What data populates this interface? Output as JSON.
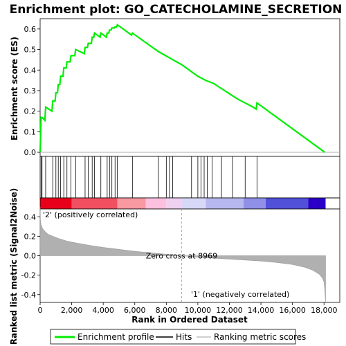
{
  "chart_data": {
    "type": "line",
    "title": "Enrichment plot: GO_CATECHOLAMINE_SECRETION",
    "top_panel": {
      "ylabel": "Enrichment score (ES)",
      "ylim": [
        -0.02,
        0.65
      ],
      "yticks": [
        "0.0",
        "0.1",
        "0.2",
        "0.3",
        "0.4",
        "0.5",
        "0.6"
      ],
      "ytick_values": [
        0.0,
        0.1,
        0.2,
        0.3,
        0.4,
        0.5,
        0.6
      ],
      "series": [
        {
          "name": "Enrichment profile",
          "color": "#00ee00",
          "x": [
            0,
            60,
            120,
            300,
            350,
            750,
            800,
            950,
            1000,
            1100,
            1150,
            1250,
            1300,
            1450,
            1500,
            1650,
            1700,
            1900,
            1950,
            2200,
            2250,
            2800,
            2850,
            3000,
            3050,
            3250,
            3300,
            3400,
            3450,
            3800,
            3850,
            4200,
            4250,
            4350,
            4400,
            4500,
            4550,
            4700,
            4750,
            4850,
            4900,
            5800,
            5850,
            7500,
            9000,
            10000,
            10500,
            11000,
            11500,
            12000,
            12500,
            13000,
            13500,
            13700,
            13750,
            18050
          ],
          "y": [
            0.0,
            0.17,
            0.17,
            0.155,
            0.22,
            0.2,
            0.25,
            0.25,
            0.29,
            0.29,
            0.33,
            0.33,
            0.37,
            0.37,
            0.41,
            0.41,
            0.44,
            0.44,
            0.47,
            0.47,
            0.5,
            0.48,
            0.51,
            0.51,
            0.53,
            0.53,
            0.56,
            0.56,
            0.58,
            0.56,
            0.58,
            0.56,
            0.58,
            0.58,
            0.595,
            0.595,
            0.605,
            0.605,
            0.61,
            0.61,
            0.62,
            0.57,
            0.58,
            0.49,
            0.425,
            0.37,
            0.35,
            0.335,
            0.31,
            0.285,
            0.26,
            0.24,
            0.22,
            0.21,
            0.24,
            0.0
          ]
        }
      ]
    },
    "hits": {
      "name": "Hits",
      "x": [
        60,
        120,
        350,
        800,
        1000,
        1150,
        1300,
        1500,
        1700,
        1950,
        2250,
        2850,
        3050,
        3300,
        3450,
        3850,
        4250,
        4400,
        4550,
        4750,
        4900,
        5850,
        7500,
        8000,
        8200,
        8400,
        9600,
        10000,
        10200,
        10400,
        10600,
        10900,
        11500,
        12200,
        13000,
        13750
      ]
    },
    "middle_band": {
      "label_pos": "'2' (positively correlated)",
      "label_neg": "'1' (negatively correlated)",
      "segment_colors": [
        "#e8001a",
        "#f05060",
        "#f898a0",
        "#ffc0e0",
        "#f0d0f0",
        "#d8d8f8",
        "#b8b8f0",
        "#9090e8",
        "#5050d8",
        "#2a00c8"
      ],
      "segment_bounds": [
        0,
        2000,
        4900,
        6700,
        8000,
        8969,
        10500,
        12900,
        14300,
        17000,
        18100
      ]
    },
    "bottom_panel": {
      "ylabel": "Ranked list metric (Signal2Noise)",
      "ylim": [
        -0.48,
        0.48
      ],
      "yticks": [
        "0.4",
        "0.2",
        "0.0",
        "-0.2",
        "-0.4"
      ],
      "ytick_values": [
        0.4,
        0.2,
        0.0,
        -0.2,
        -0.4
      ],
      "zero_cross_label": "Zero cross at 8969",
      "zero_cross": 8969,
      "metric_x": [
        0,
        20,
        60,
        150,
        300,
        500,
        800,
        1200,
        1700,
        2300,
        3000,
        4000,
        5000,
        6000,
        7000,
        8000,
        8969,
        10000,
        11000,
        12000,
        13000,
        14000,
        15000,
        16000,
        16800,
        17300,
        17700,
        17900,
        18000,
        18050,
        18100
      ],
      "metric_y": [
        0.5,
        0.36,
        0.32,
        0.28,
        0.25,
        0.22,
        0.2,
        0.175,
        0.15,
        0.13,
        0.11,
        0.085,
        0.065,
        0.045,
        0.03,
        0.015,
        0.0,
        -0.015,
        -0.025,
        -0.035,
        -0.045,
        -0.055,
        -0.07,
        -0.09,
        -0.12,
        -0.15,
        -0.19,
        -0.23,
        -0.27,
        -0.35,
        -0.48
      ]
    },
    "xlabel": "Rank in Ordered Dataset",
    "xlim": [
      0,
      19000
    ],
    "xticks": [
      "0",
      "2,000",
      "4,000",
      "6,000",
      "8,000",
      "10,000",
      "12,000",
      "14,000",
      "16,000",
      "18,000"
    ],
    "xtick_values": [
      0,
      2000,
      4000,
      6000,
      8000,
      10000,
      12000,
      14000,
      16000,
      18000
    ],
    "legend": {
      "placement": "bottom",
      "items": [
        {
          "label": "Enrichment profile",
          "color": "#00ee00",
          "style": "thick-line"
        },
        {
          "label": "Hits",
          "color": "#000000",
          "style": "line"
        },
        {
          "label": "Ranking metric scores",
          "color": "#c0c0c0",
          "style": "line"
        }
      ]
    }
  }
}
